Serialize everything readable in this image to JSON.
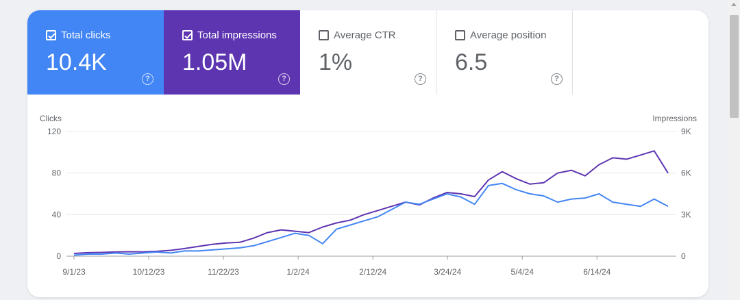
{
  "metrics": [
    {
      "label": "Total clicks",
      "value": "10.4K",
      "checked": true,
      "color": "#4285f4"
    },
    {
      "label": "Total impressions",
      "value": "1.05M",
      "checked": true,
      "color": "#5e35b1"
    },
    {
      "label": "Average CTR",
      "value": "1%",
      "checked": false
    },
    {
      "label": "Average position",
      "value": "6.5",
      "checked": false
    }
  ],
  "help_glyph": "?",
  "chart_data": {
    "type": "line",
    "left_axis_title": "Clicks",
    "right_axis_title": "Impressions",
    "left_ticks": [
      "0",
      "40",
      "80",
      "120"
    ],
    "right_ticks": [
      "0",
      "3K",
      "6K",
      "9K"
    ],
    "ylim_left": [
      0,
      120
    ],
    "ylim_right": [
      0,
      9000
    ],
    "x_ticks": [
      "9/1/23",
      "10/12/23",
      "11/22/23",
      "1/2/24",
      "2/12/24",
      "3/24/24",
      "5/4/24",
      "6/14/24"
    ],
    "x_range": [
      "2023-09-01",
      "2024-07-23"
    ],
    "grid": true,
    "series": [
      {
        "name": "Clicks",
        "axis": "left",
        "color": "#4285f4",
        "weekly_values": [
          1,
          2,
          2,
          3,
          2,
          3,
          4,
          3,
          5,
          5,
          6,
          7,
          8,
          10,
          14,
          18,
          22,
          20,
          12,
          26,
          30,
          34,
          38,
          45,
          52,
          50,
          55,
          60,
          57,
          50,
          68,
          70,
          64,
          60,
          58,
          52,
          55,
          56,
          60,
          52,
          50,
          48,
          55,
          48
        ]
      },
      {
        "name": "Impressions",
        "axis": "right",
        "color": "#5e35b1",
        "weekly_values": [
          200,
          250,
          270,
          300,
          320,
          310,
          350,
          420,
          550,
          700,
          850,
          950,
          1000,
          1300,
          1700,
          1900,
          1800,
          1700,
          2100,
          2400,
          2600,
          3000,
          3300,
          3600,
          3900,
          3700,
          4200,
          4600,
          4500,
          4300,
          5500,
          6100,
          5600,
          5200,
          5300,
          6000,
          6200,
          5800,
          6600,
          7100,
          7000,
          7300,
          7600,
          6000
        ]
      }
    ]
  }
}
